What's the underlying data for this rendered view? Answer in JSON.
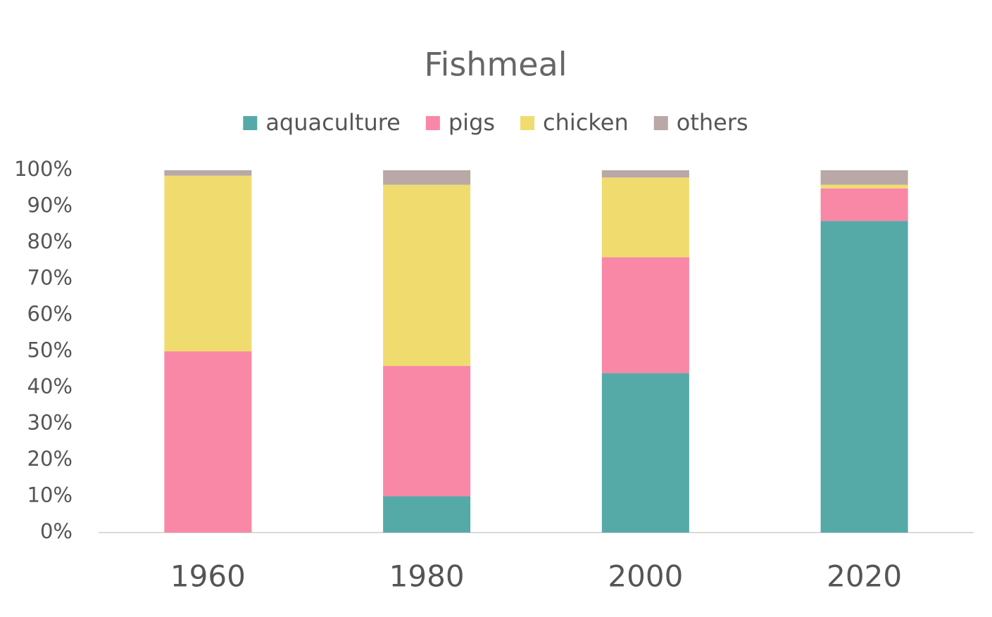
{
  "chart_data": {
    "type": "stacked_bar",
    "title": "Fishmeal",
    "categories": [
      "1960",
      "1980",
      "2000",
      "2020"
    ],
    "series": [
      {
        "name": "aquaculture",
        "color": "#55aaa8",
        "values": [
          0,
          10,
          44,
          86
        ]
      },
      {
        "name": "pigs",
        "color": "#f888a6",
        "values": [
          50,
          36,
          32,
          9
        ]
      },
      {
        "name": "chicken",
        "color": "#f0dc6e",
        "values": [
          48.5,
          50,
          22,
          1
        ]
      },
      {
        "name": "others",
        "color": "#b9a8a6",
        "values": [
          1.5,
          4,
          2,
          4
        ]
      }
    ],
    "ylim": [
      0,
      100
    ],
    "yticks": [
      {
        "value": 0,
        "label": "0%"
      },
      {
        "value": 10,
        "label": "10%"
      },
      {
        "value": 20,
        "label": "20%"
      },
      {
        "value": 30,
        "label": "30%"
      },
      {
        "value": 40,
        "label": "40%"
      },
      {
        "value": 50,
        "label": "50%"
      },
      {
        "value": 60,
        "label": "60%"
      },
      {
        "value": 70,
        "label": "70%"
      },
      {
        "value": 80,
        "label": "80%"
      },
      {
        "value": 90,
        "label": "90%"
      },
      {
        "value": 100,
        "label": "100%"
      }
    ],
    "grid": false,
    "legend": "top"
  }
}
